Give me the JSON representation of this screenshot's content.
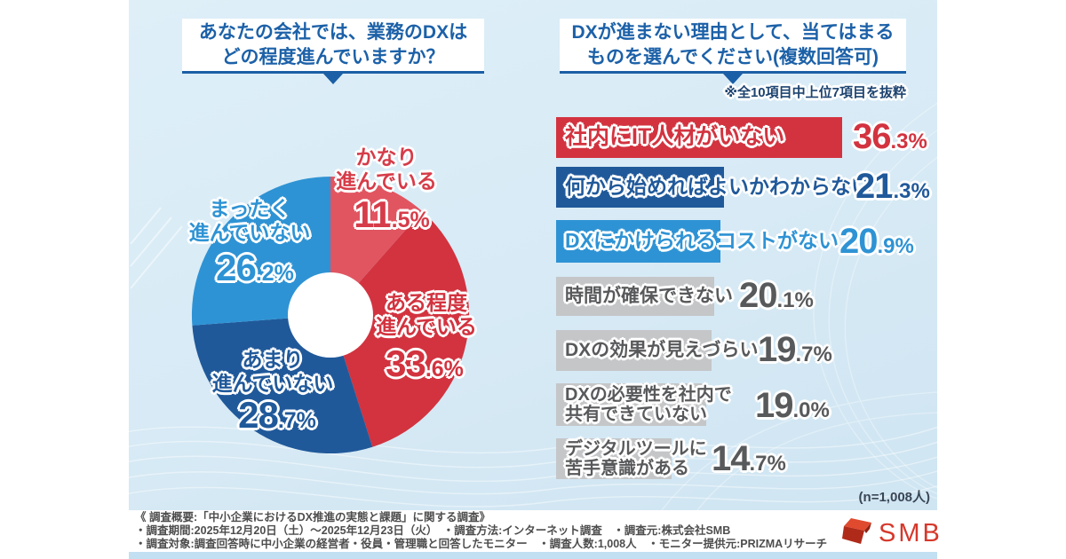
{
  "pie_section": {
    "title_line1": "あなたの会社では、業務のDXは",
    "title_line2": "どの程度進んでいますか？"
  },
  "bar_section": {
    "title_line1": "DXが進まない理由として、当てはまる",
    "title_line2": "ものを選んでください(複数回答可)",
    "excerpt_note": "※全10項目中上位7項目を抜粋",
    "sample_note": "(n=1,008人)"
  },
  "chart_data": [
    {
      "type": "pie",
      "title": "あなたの会社では、業務のDXはどの程度進んでいますか？",
      "donut": true,
      "start_angle_deg": 0,
      "direction": "clockwise",
      "slices": [
        {
          "label": "かなり進んでいる",
          "label_lines": "かなり\n進んでいる",
          "value": 11.5,
          "color": "#e15561",
          "text_color": "#d63c49"
        },
        {
          "label": "ある程度進んでいる",
          "label_lines": "ある程度\n進んでいる",
          "value": 33.6,
          "color": "#d2333f",
          "text_color": "#d2333f"
        },
        {
          "label": "あまり進んでいない",
          "label_lines": "あまり\n進んでいない",
          "value": 28.7,
          "color": "#20599a",
          "text_color": "#20599a"
        },
        {
          "label": "まったく進んでいない",
          "label_lines": "まったく\n進んでいない",
          "value": 26.2,
          "color": "#2e93d4",
          "text_color": "#2e93d4"
        }
      ]
    },
    {
      "type": "bar",
      "title": "DXが進まない理由として、当てはまるものを選んでください(複数回答可)",
      "note": "※全10項目中上位7項目を抜粋",
      "n": "(n=1,008人)",
      "xlim": [
        0,
        40
      ],
      "categories": [
        "社内にIT人材がいない",
        "何から始めればよいかわからない",
        "DXにかけられるコストがない",
        "時間が確保できない",
        "DXの効果が見えづらい",
        "DXの必要性を社内で\n共有できていない",
        "デジタルツールに\n苦手意識がある"
      ],
      "values": [
        36.3,
        21.3,
        20.9,
        20.1,
        19.7,
        19.0,
        14.7
      ],
      "bar_colors": [
        "#d2333f",
        "#20599a",
        "#2e93d4",
        "#c5c6c8",
        "#c5c6c8",
        "#c5c6c8",
        "#c5c6c8"
      ],
      "text_colors": [
        "#d2333f",
        "#20599a",
        "#2e93d4",
        "#58595b",
        "#58595b",
        "#58595b",
        "#58595b"
      ]
    }
  ],
  "footer": {
    "line1": "《 調査概要:「中小企業におけるDX推進の実態と課題」に関する調査》",
    "line2": "・調査期間:2025年12月20日（土）～2025年12月23日（火）　・調査方法:インターネット調査　・調査元:株式会社SMB",
    "line3": "・調査対象:調査回答時に中小企業の経営者・役員・管理職と回答したモニター　・調査人数:1,008人　・モニター提供元:PRIZMAリサーチ",
    "logo_text": "SMB"
  }
}
